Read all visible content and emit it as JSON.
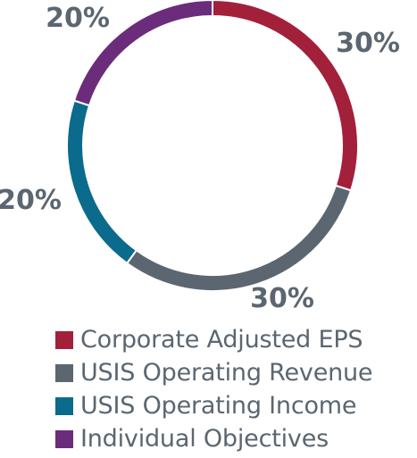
{
  "chart_data": {
    "type": "pie",
    "subtype": "donut",
    "categories": [
      "Corporate Adjusted EPS",
      "USIS Operating Revenue",
      "USIS Operating Income",
      "Individual Objectives"
    ],
    "values": [
      30,
      30,
      20,
      20
    ],
    "value_labels": [
      "30%",
      "30%",
      "20%",
      "20%"
    ],
    "colors": [
      "#a3203a",
      "#5b6670",
      "#0a6b8c",
      "#6b2d7b"
    ],
    "title": "",
    "legend_position": "bottom"
  }
}
